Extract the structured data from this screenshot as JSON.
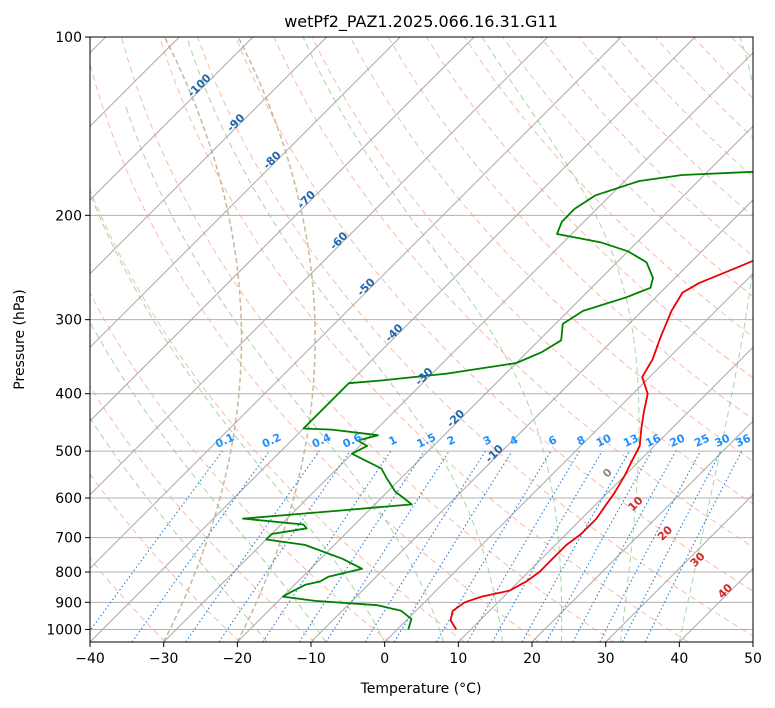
{
  "chart_data": {
    "type": "line",
    "title": "wetPf2_PAZ1.2025.066.16.31.G11",
    "xlabel": "Temperature (°C)",
    "ylabel": "Pressure (hPa)",
    "xlim": [
      -40,
      50
    ],
    "ylim": [
      1050,
      100
    ],
    "y_scale": "log",
    "x_ticks": [
      -40,
      -30,
      -20,
      -10,
      0,
      10,
      20,
      30,
      40,
      50
    ],
    "y_ticks": [
      1000,
      900,
      800,
      700,
      600,
      500,
      400,
      300,
      200,
      100
    ],
    "grid": true,
    "colors": {
      "temperature": "#ee0000",
      "dewpoint": "#008000",
      "isotherm": "#a8a8a8",
      "pressure_grid": "#b0b0b0",
      "dry_adiabat": "#f7a48a",
      "moist_adiabat": "#8fcc8f",
      "mixing_ratio": "#2a7fd4",
      "isotherm_label": "#2166ac",
      "dry_adiabat_label": "#d62728",
      "mixing_label": "#1e90ff",
      "theta_e": "#c8b89a"
    },
    "series": [
      {
        "role": "temperature",
        "points": [
          [
            8,
            1000
          ],
          [
            6,
            965
          ],
          [
            5,
            930
          ],
          [
            5.5,
            900
          ],
          [
            7,
            880
          ],
          [
            10,
            860
          ],
          [
            11,
            830
          ],
          [
            11.5,
            800
          ],
          [
            11.5,
            760
          ],
          [
            11.5,
            720
          ],
          [
            12,
            690
          ],
          [
            12,
            650
          ],
          [
            11.5,
            620
          ],
          [
            11,
            590
          ],
          [
            10,
            550
          ],
          [
            9,
            520
          ],
          [
            8,
            490
          ],
          [
            6,
            460
          ],
          [
            4,
            430
          ],
          [
            2,
            400
          ],
          [
            -1,
            375
          ],
          [
            -2,
            350
          ],
          [
            -4,
            320
          ],
          [
            -6,
            290
          ],
          [
            -7,
            270
          ],
          [
            -6,
            260
          ],
          [
            -3,
            245
          ],
          [
            0,
            230
          ],
          [
            2,
            220
          ],
          [
            4,
            208
          ],
          [
            5,
            195
          ],
          [
            6,
            185
          ],
          [
            7,
            175
          ],
          [
            7.5,
            165
          ],
          [
            8,
            155
          ],
          [
            9,
            145
          ],
          [
            10,
            135
          ],
          [
            11,
            125
          ],
          [
            11.5,
            115
          ],
          [
            13,
            108
          ],
          [
            16,
            100
          ]
        ]
      },
      {
        "role": "dewpoint",
        "points": [
          [
            1.5,
            1000
          ],
          [
            0.5,
            960
          ],
          [
            -2,
            930
          ],
          [
            -6,
            910
          ],
          [
            -15,
            895
          ],
          [
            -20,
            880
          ],
          [
            -19.5,
            865
          ],
          [
            -18.5,
            840
          ],
          [
            -17,
            830
          ],
          [
            -16.5,
            815
          ],
          [
            -13,
            790
          ],
          [
            -17,
            760
          ],
          [
            -24,
            720
          ],
          [
            -30,
            705
          ],
          [
            -30,
            690
          ],
          [
            -26,
            675
          ],
          [
            -27,
            665
          ],
          [
            -36,
            650
          ],
          [
            -30,
            640
          ],
          [
            -24,
            630
          ],
          [
            -15,
            615
          ],
          [
            -19,
            585
          ],
          [
            -22,
            555
          ],
          [
            -24,
            535
          ],
          [
            -28,
            515
          ],
          [
            -30,
            505
          ],
          [
            -29,
            490
          ],
          [
            -31,
            480
          ],
          [
            -29,
            470
          ],
          [
            -36,
            460
          ],
          [
            -40,
            458
          ],
          [
            -40,
            384
          ],
          [
            -36,
            380
          ],
          [
            -28,
            370
          ],
          [
            -20,
            355
          ],
          [
            -18,
            340
          ],
          [
            -17,
            325
          ],
          [
            -19,
            305
          ],
          [
            -18,
            290
          ],
          [
            -14,
            275
          ],
          [
            -12,
            265
          ],
          [
            -13,
            255
          ],
          [
            -16,
            240
          ],
          [
            -20,
            230
          ],
          [
            -25,
            222
          ],
          [
            -32,
            215
          ],
          [
            -33,
            205
          ],
          [
            -33,
            195
          ],
          [
            -32,
            185
          ],
          [
            -28,
            175
          ],
          [
            -23,
            171
          ],
          [
            -10,
            168
          ],
          [
            -3,
            163
          ],
          [
            -3,
            150
          ],
          [
            -3,
            138
          ],
          [
            -3,
            128
          ],
          [
            -4,
            122
          ],
          [
            -1,
            116
          ],
          [
            -0.5,
            110
          ],
          [
            0,
            104
          ],
          [
            1,
            100
          ]
        ]
      }
    ],
    "isotherm_labels": [
      "-100",
      "-90",
      "-80",
      "-70",
      "-60",
      "-50",
      "-40",
      "-30",
      "-20",
      "-10"
    ],
    "mixing_ratio_labels": [
      "0.1",
      "0.2",
      "0.4",
      "0.6",
      "1",
      "1.5",
      "2",
      "3",
      "4",
      "6",
      "8",
      "10",
      "13",
      "16",
      "20",
      "25",
      "30",
      "36"
    ],
    "dry_adiabat_labels": [
      "0",
      "10",
      "20",
      "30",
      "40"
    ]
  }
}
